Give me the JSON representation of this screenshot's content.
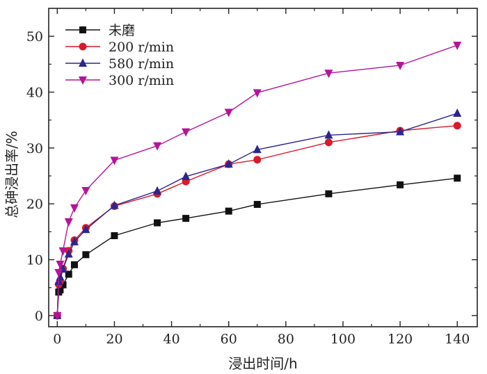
{
  "chart_data": {
    "type": "line",
    "title": "",
    "xlabel": "浸出时间/h",
    "ylabel": "总砷浸出率/%",
    "xlim": [
      -3,
      147
    ],
    "ylim": [
      -2,
      55
    ],
    "xticks": [
      0,
      20,
      40,
      60,
      80,
      100,
      120,
      140
    ],
    "yticks": [
      0,
      10,
      20,
      30,
      40,
      50
    ],
    "grid": false,
    "legend_position": "top-left",
    "series": [
      {
        "name": "未磨",
        "color": "#111111",
        "marker": "square",
        "x": [
          0,
          0.5,
          1,
          2,
          4,
          6,
          10,
          20,
          35,
          45,
          60,
          70,
          95,
          120,
          140
        ],
        "y": [
          0,
          4.2,
          4.6,
          5.5,
          7.4,
          9.1,
          10.9,
          14.3,
          16.6,
          17.4,
          18.7,
          19.9,
          21.8,
          23.4,
          24.6
        ]
      },
      {
        "name": "200 r/min",
        "color": "#d91a2a",
        "marker": "circle",
        "x": [
          0,
          0.5,
          1,
          2,
          4,
          6,
          10,
          20,
          35,
          45,
          60,
          70,
          95,
          120,
          140
        ],
        "y": [
          0,
          5.6,
          6.1,
          8.4,
          11.6,
          13.5,
          15.7,
          19.6,
          21.8,
          24.0,
          27.1,
          27.9,
          31.0,
          33.1,
          34.0
        ]
      },
      {
        "name": "580 r/min",
        "color": "#2c2590",
        "marker": "triangle-up",
        "x": [
          0,
          0.5,
          1,
          2,
          4,
          6,
          10,
          20,
          35,
          45,
          60,
          70,
          95,
          120,
          140
        ],
        "y": [
          0,
          6.1,
          6.9,
          8.3,
          11.0,
          13.2,
          15.4,
          19.7,
          22.3,
          24.9,
          27.1,
          29.7,
          32.3,
          32.9,
          36.2
        ]
      },
      {
        "name": "300 r/min",
        "color": "#b5139a",
        "marker": "triangle-down",
        "x": [
          0,
          0.5,
          1,
          2,
          4,
          6,
          10,
          20,
          35,
          45,
          60,
          70,
          95,
          120,
          140
        ],
        "y": [
          0,
          7.7,
          9.2,
          11.6,
          16.8,
          19.3,
          22.4,
          27.8,
          30.4,
          32.9,
          36.4,
          39.9,
          43.4,
          44.8,
          48.4
        ]
      }
    ]
  }
}
